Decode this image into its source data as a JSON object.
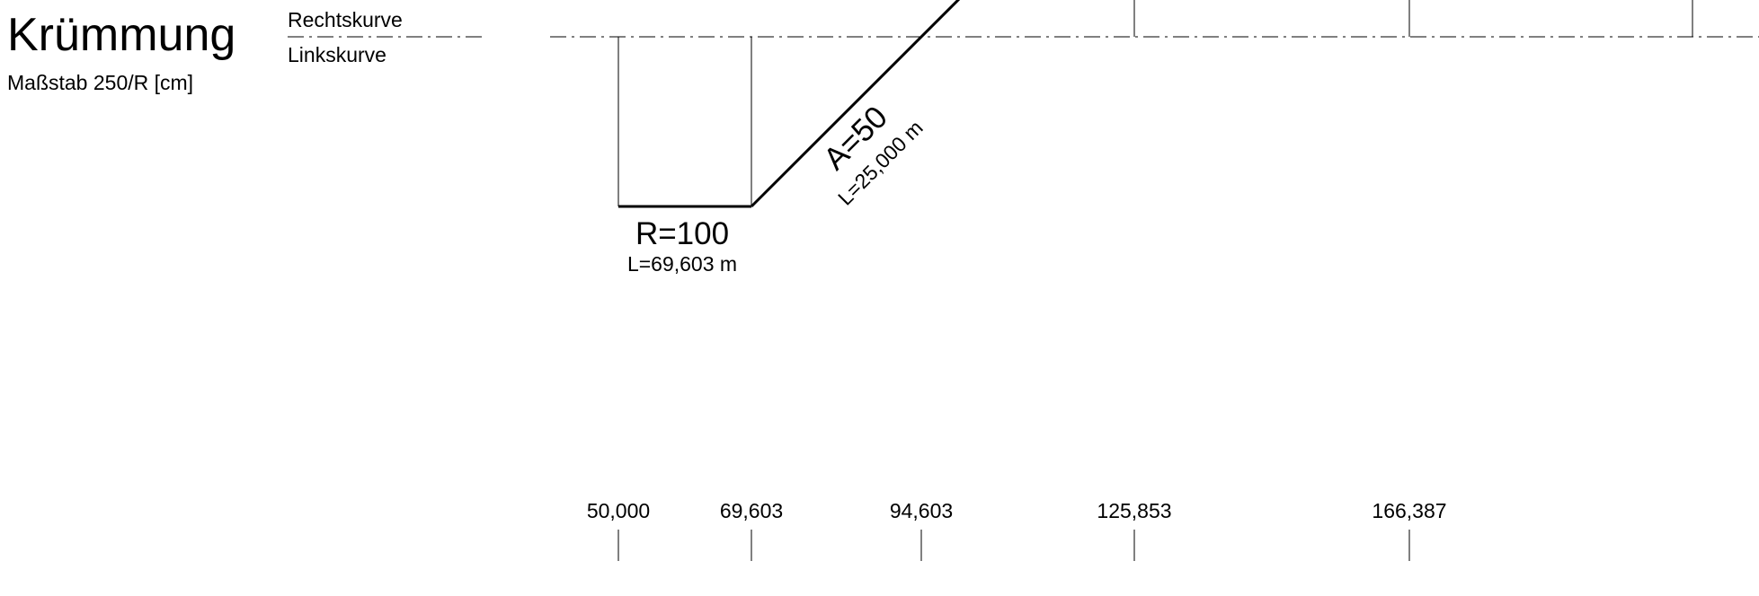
{
  "header": {
    "title": "Krümmung",
    "scale_label": "Maßstab 250/R [cm]",
    "right_curve_label": "Rechtskurve",
    "left_curve_label": "Linkskurve"
  },
  "elements": {
    "arc": {
      "radius_label": "R=100",
      "length_label": "L=69,603 m"
    },
    "clothoid": {
      "parameter_label": "A=50",
      "length_label": "L=25,000 m"
    }
  },
  "stations": [
    "50,000",
    "69,603",
    "94,603",
    "125,853",
    "166,387"
  ],
  "colors": {
    "line": "#000000",
    "background": "#ffffff"
  }
}
